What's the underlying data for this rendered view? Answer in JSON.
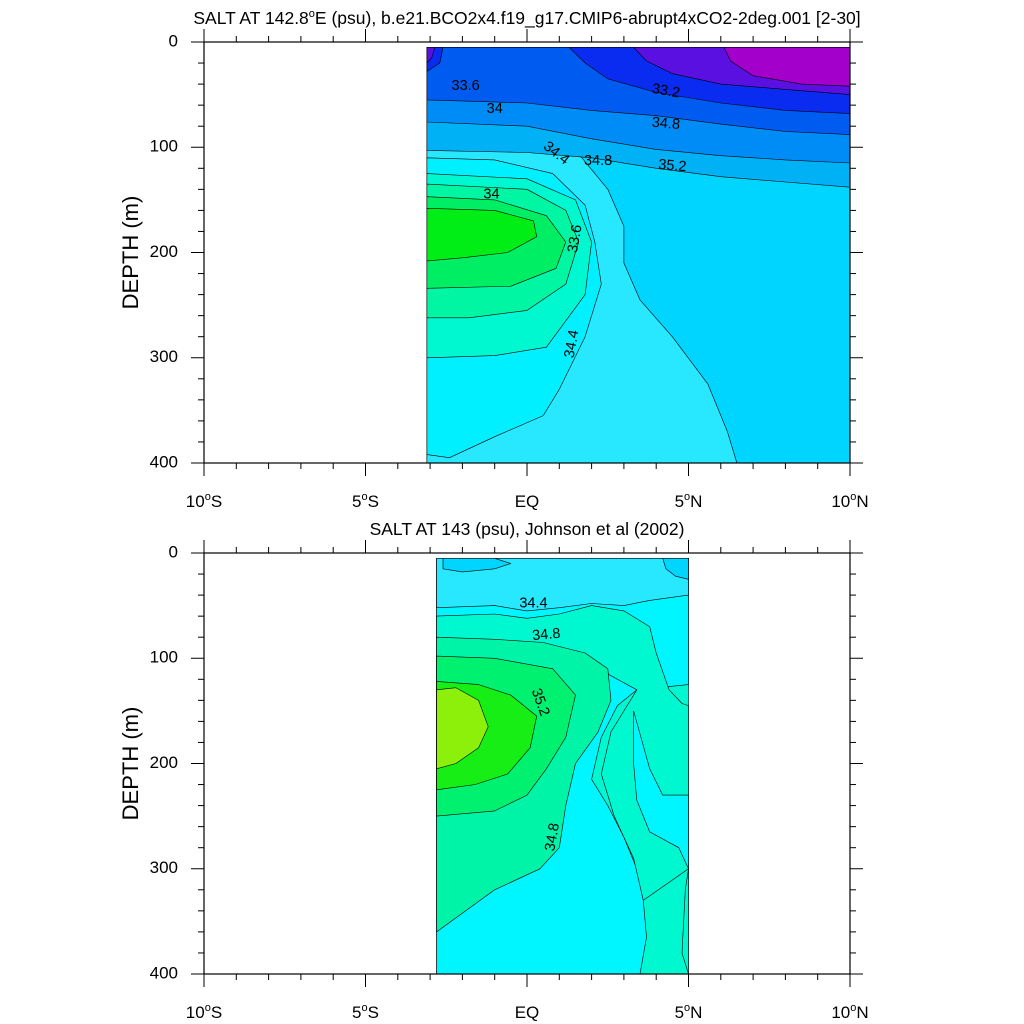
{
  "chart_data": [
    {
      "type": "heatmap",
      "title_parts": [
        "SALT AT 142.8",
        "o",
        "E (psu), b.e21.BCO2x4.f19_g17.CMIP6-abrupt4xCO2-2deg.001 [2-30]"
      ],
      "ylabel": "DEPTH (m)",
      "xlim": [
        -10,
        10
      ],
      "ylim": [
        0,
        400
      ],
      "y_ticks": [
        "0",
        "100",
        "200",
        "300",
        "400"
      ],
      "x_ticks": [
        {
          "num": "10",
          "hemi": "S"
        },
        {
          "num": "5",
          "hemi": "S"
        },
        {
          "num": "EQ",
          "hemi": ""
        },
        {
          "num": "5",
          "hemi": "N"
        },
        {
          "num": "10",
          "hemi": "N"
        }
      ],
      "data_extent": {
        "lat": [
          -3.1,
          10
        ],
        "depth": [
          5,
          400
        ]
      },
      "contour_labels": [
        "33.2",
        "33.6",
        "34",
        "34.4",
        "34.8",
        "35.2",
        "33.6",
        "34",
        "34.8",
        "34.4"
      ],
      "colors": {
        "le_33_0": "#a400cc",
        "b33_0": "#5a10e0",
        "b33_2": "#0a2bf0",
        "b33_4": "#005cf0",
        "b33_6": "#008cf7",
        "b33_8": "#00b2f5",
        "b34_0": "#00d5ff",
        "b34_2": "#28e8ff",
        "b34_4": "#00f0ff",
        "b34_6": "#00f8d0",
        "b34_8": "#00f6a2",
        "b35_0": "#00ee64",
        "b35_2": "#00ee16"
      }
    },
    {
      "type": "heatmap",
      "title": "SALT AT 143 (psu), Johnson et al (2002)",
      "ylabel": "DEPTH (m)",
      "xlim": [
        -10,
        10
      ],
      "ylim": [
        0,
        400
      ],
      "y_ticks": [
        "0",
        "100",
        "200",
        "300",
        "400"
      ],
      "x_ticks": [
        {
          "num": "10",
          "hemi": "S"
        },
        {
          "num": "5",
          "hemi": "S"
        },
        {
          "num": "EQ",
          "hemi": ""
        },
        {
          "num": "5",
          "hemi": "N"
        },
        {
          "num": "10",
          "hemi": "N"
        }
      ],
      "data_extent": {
        "lat": [
          -2.8,
          5
        ],
        "depth": [
          5,
          400
        ]
      },
      "contour_labels": [
        "34.4",
        "34.8",
        "35.2",
        "34.8"
      ],
      "colors": {
        "b34_0": "#00d5ff",
        "b34_2": "#28e8ff",
        "b34_4": "#00f6ff",
        "b34_6": "#00f8d0",
        "b34_8": "#00f4a8",
        "b35_0": "#00f070",
        "b35_2": "#16ee16",
        "b35_4": "#8cf00a"
      }
    }
  ]
}
